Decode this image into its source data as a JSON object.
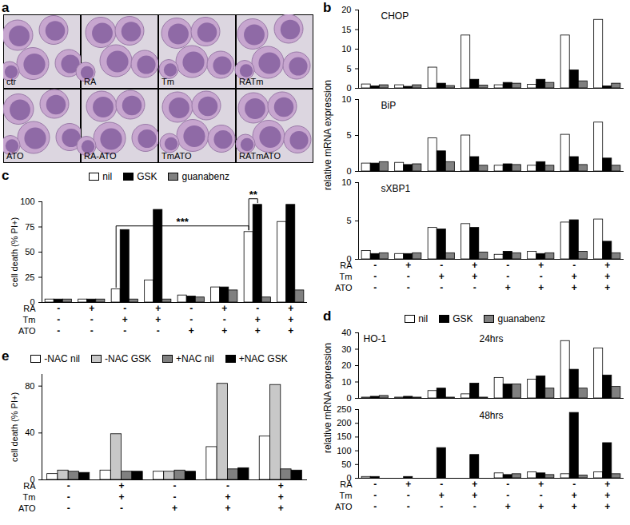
{
  "chart_data": [
    {
      "type": "image",
      "panel": "a",
      "labels": [
        "ctr",
        "RA",
        "Tm",
        "RATm",
        "ATO",
        "RA-ATO",
        "TmATO",
        "RATmATO"
      ]
    },
    {
      "type": "bar",
      "panel": "b",
      "ylabel": "relative mRNA expression",
      "categories": [
        null,
        null,
        null,
        null,
        null,
        null,
        null,
        null
      ],
      "treatment_rows": [
        {
          "name": "RA",
          "values": [
            "-",
            "+",
            "-",
            "+",
            "-",
            "+",
            "-",
            "+"
          ]
        },
        {
          "name": "Tm",
          "values": [
            "-",
            "-",
            "+",
            "+",
            "-",
            "-",
            "+",
            "+"
          ]
        },
        {
          "name": "ATO",
          "values": [
            "-",
            "-",
            "-",
            "-",
            "+",
            "+",
            "+",
            "+"
          ]
        }
      ],
      "series": [
        {
          "color": "#ffffff"
        },
        {
          "color": "#000000"
        },
        {
          "color": "#808080"
        }
      ],
      "subplots": [
        {
          "title": "CHOP",
          "ylim": [
            0,
            20
          ],
          "yticks": [
            0,
            5,
            10,
            15,
            20
          ],
          "values": [
            [
              1,
              0.8,
              5.3,
              13.5,
              0.8,
              0.9,
              13.5,
              17.5
            ],
            [
              0.5,
              0.4,
              1.2,
              2.2,
              1.4,
              2.2,
              4.6,
              0.5
            ],
            [
              0.8,
              0.8,
              0.6,
              0.7,
              1.2,
              1.4,
              1.8,
              1.2
            ]
          ]
        },
        {
          "title": "BiP",
          "ylim": [
            0,
            10
          ],
          "yticks": [
            0,
            5,
            10
          ],
          "values": [
            [
              1.1,
              1.2,
              4.6,
              5.0,
              0.8,
              0.8,
              5.1,
              6.8
            ],
            [
              1.1,
              0.9,
              2.8,
              2.0,
              1.0,
              1.3,
              2.0,
              1.8
            ],
            [
              1.3,
              1.0,
              1.3,
              0.8,
              0.9,
              0.8,
              0.9,
              0.8
            ]
          ]
        },
        {
          "title": "sXBP1",
          "ylim": [
            0,
            10
          ],
          "yticks": [
            0,
            5,
            10
          ],
          "values": [
            [
              1.1,
              0.7,
              4.1,
              4.6,
              0.6,
              1.0,
              4.8,
              5.2
            ],
            [
              0.7,
              0.7,
              3.9,
              4.1,
              1.0,
              0.7,
              5.1,
              2.3
            ],
            [
              0.8,
              0.8,
              0.8,
              0.9,
              0.8,
              0.8,
              1.0,
              0.8
            ]
          ]
        }
      ]
    },
    {
      "type": "bar",
      "panel": "c",
      "ylabel": "cell death (% PI+)",
      "legend": "top",
      "categories": [
        null,
        null,
        null,
        null,
        null,
        null,
        null,
        null
      ],
      "treatment_rows": [
        {
          "name": "RA",
          "values": [
            "-",
            "+",
            "-",
            "+",
            "-",
            "+",
            "-",
            "+"
          ]
        },
        {
          "name": "Tm",
          "values": [
            "-",
            "-",
            "+",
            "+",
            "-",
            "-",
            "+",
            "+"
          ]
        },
        {
          "name": "ATO",
          "values": [
            "-",
            "-",
            "-",
            "-",
            "+",
            "+",
            "+",
            "+"
          ]
        }
      ],
      "ylim": [
        0,
        100
      ],
      "yticks": [
        0,
        25,
        50,
        75,
        100
      ],
      "series": [
        {
          "name": "nil",
          "color": "#ffffff",
          "values": [
            3,
            3,
            13,
            22,
            7,
            15,
            70,
            80
          ]
        },
        {
          "name": "GSK",
          "color": "#000000",
          "values": [
            3,
            3,
            72,
            92,
            6,
            15,
            97,
            97
          ]
        },
        {
          "name": "guanabenz",
          "color": "#808080",
          "values": [
            3,
            3,
            3,
            3,
            5,
            12,
            5,
            12
          ]
        }
      ],
      "annotations": [
        {
          "text": "***",
          "from": [
            2,
            "nil"
          ],
          "to": [
            6,
            "nil"
          ]
        },
        {
          "text": "**",
          "from": [
            6,
            "nil"
          ],
          "to": [
            6,
            "GSK"
          ]
        }
      ]
    },
    {
      "type": "bar",
      "panel": "d",
      "title": "HO-1",
      "ylabel": "relative mRNA expression",
      "legend": "top",
      "categories": [
        null,
        null,
        null,
        null,
        null,
        null,
        null,
        null
      ],
      "treatment_rows": [
        {
          "name": "RA",
          "values": [
            "-",
            "+",
            "-",
            "+",
            "-",
            "+",
            "-",
            "+"
          ]
        },
        {
          "name": "Tm",
          "values": [
            "-",
            "-",
            "+",
            "+",
            "-",
            "-",
            "+",
            "+"
          ]
        },
        {
          "name": "ATO",
          "values": [
            "-",
            "-",
            "-",
            "-",
            "+",
            "+",
            "+",
            "+"
          ]
        }
      ],
      "series": [
        {
          "name": "nil",
          "color": "#ffffff"
        },
        {
          "name": "GSK",
          "color": "#000000"
        },
        {
          "name": "guanabenz",
          "color": "#808080"
        }
      ],
      "subplots": [
        {
          "title": "24hrs",
          "ylim": [
            0,
            40
          ],
          "yticks": [
            0,
            10,
            20,
            30,
            40
          ],
          "values": [
            [
              0.5,
              0.5,
              4.5,
              2.5,
              12.5,
              11.5,
              35,
              30.5
            ],
            [
              1.0,
              1.0,
              6,
              9,
              8.5,
              13.5,
              17.5,
              14
            ],
            [
              1.5,
              0.5,
              0.5,
              0.5,
              8.5,
              6,
              6,
              7
            ]
          ]
        },
        {
          "title": "48hrs",
          "ylim": [
            0,
            250
          ],
          "yticks": [
            0,
            50,
            100,
            150,
            200,
            250
          ],
          "values": [
            [
              5,
              0,
              0,
              0,
              18,
              22,
              15,
              22
            ],
            [
              5,
              5,
              110,
              85,
              12,
              18,
              238,
              128
            ],
            [
              0,
              0,
              0,
              0,
              15,
              12,
              10,
              15
            ]
          ]
        }
      ]
    },
    {
      "type": "bar",
      "panel": "e",
      "ylabel": "cell death (% PI+)",
      "legend": "top",
      "categories": [
        null,
        null,
        null,
        null,
        null
      ],
      "treatment_rows": [
        {
          "name": "RA",
          "values": [
            "-",
            "+",
            "-",
            "-",
            "+"
          ]
        },
        {
          "name": "Tm",
          "values": [
            "-",
            "+",
            "-",
            "+",
            "+"
          ]
        },
        {
          "name": "ATO",
          "values": [
            "-",
            "-",
            "+",
            "+",
            "+"
          ]
        }
      ],
      "ylim": [
        0,
        90
      ],
      "yticks": [
        0,
        40,
        80
      ],
      "series": [
        {
          "name": "-NAC nil",
          "color": "#ffffff",
          "values": [
            5,
            8,
            7,
            28,
            37
          ]
        },
        {
          "name": "-NAC GSK",
          "color": "#c8c8c8",
          "values": [
            8,
            39,
            7,
            82,
            81
          ]
        },
        {
          "name": "+NAC nil",
          "color": "#808080",
          "values": [
            7,
            7,
            8,
            9,
            9
          ]
        },
        {
          "name": "+NAC GSK",
          "color": "#000000",
          "values": [
            6,
            7,
            7,
            10,
            8
          ]
        }
      ]
    }
  ]
}
